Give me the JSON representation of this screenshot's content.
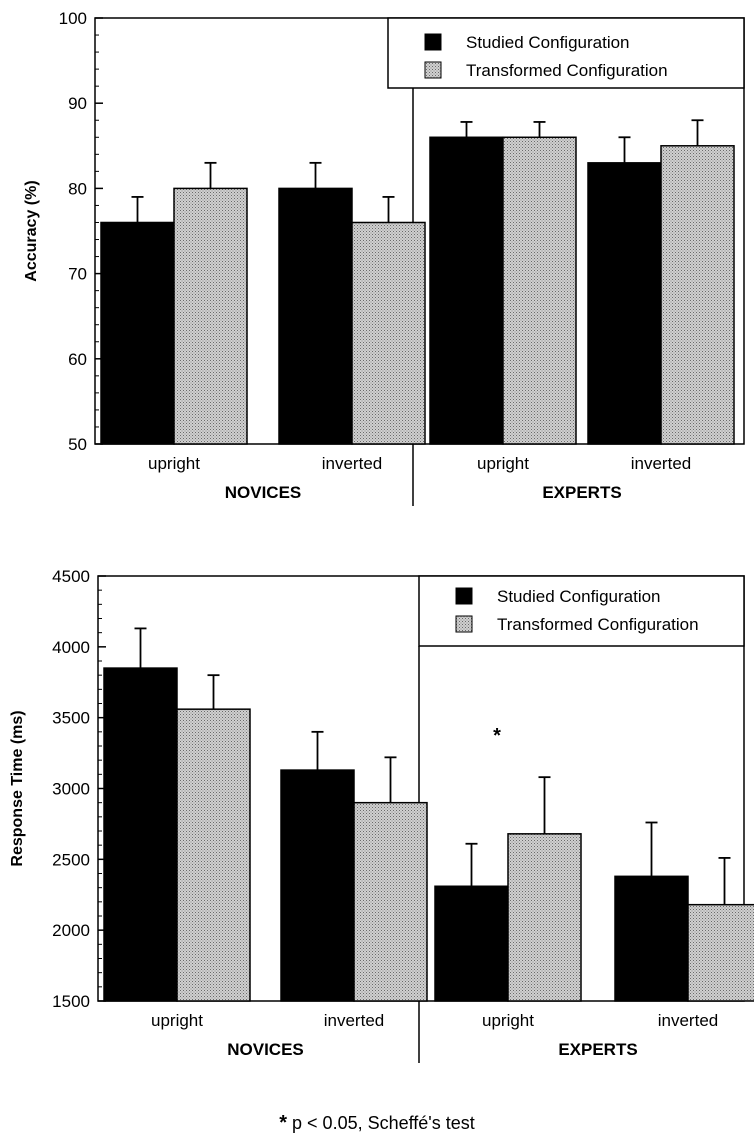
{
  "chart_data": [
    {
      "type": "bar",
      "ylabel": "Accuracy (%)",
      "ylim": [
        50,
        100
      ],
      "yticks": [
        "50",
        "60",
        "70",
        "80",
        "90",
        "100"
      ],
      "groups": [
        {
          "label": "NOVICES",
          "categories": [
            "upright",
            "inverted"
          ]
        },
        {
          "label": "EXPERTS",
          "categories": [
            "upright",
            "inverted"
          ]
        }
      ],
      "categories": [
        "upright",
        "inverted",
        "upright",
        "inverted"
      ],
      "series": [
        {
          "name": "Studied Configuration",
          "color": "#000000",
          "values": [
            76,
            80,
            86,
            83
          ],
          "errors": [
            3,
            3,
            1.8,
            3
          ]
        },
        {
          "name": "Transformed Configuration",
          "color": "#c8c8c8",
          "values": [
            80,
            76,
            86,
            85
          ],
          "errors": [
            3,
            3,
            1.8,
            3
          ]
        }
      ],
      "legend_position": "top-right",
      "annotations": []
    },
    {
      "type": "bar",
      "ylabel": "Response Time (ms)",
      "ylim": [
        1500,
        4500
      ],
      "yticks": [
        "1500",
        "2000",
        "2500",
        "3000",
        "3500",
        "4000",
        "4500"
      ],
      "groups": [
        {
          "label": "NOVICES",
          "categories": [
            "upright",
            "inverted"
          ]
        },
        {
          "label": "EXPERTS",
          "categories": [
            "upright",
            "inverted"
          ]
        }
      ],
      "categories": [
        "upright",
        "inverted",
        "upright",
        "inverted"
      ],
      "series": [
        {
          "name": "Studied Configuration",
          "color": "#000000",
          "values": [
            3850,
            3130,
            2310,
            2380
          ],
          "errors": [
            280,
            270,
            300,
            380
          ]
        },
        {
          "name": "Transformed Configuration",
          "color": "#c8c8c8",
          "values": [
            3560,
            2900,
            2680,
            2180
          ],
          "errors": [
            240,
            320,
            400,
            330
          ]
        }
      ],
      "legend_position": "top-right",
      "annotations": [
        {
          "text": "*",
          "category_index": 2
        }
      ]
    }
  ],
  "footnote": {
    "star": "*",
    "text": "p < 0.05, Scheffé's test"
  }
}
